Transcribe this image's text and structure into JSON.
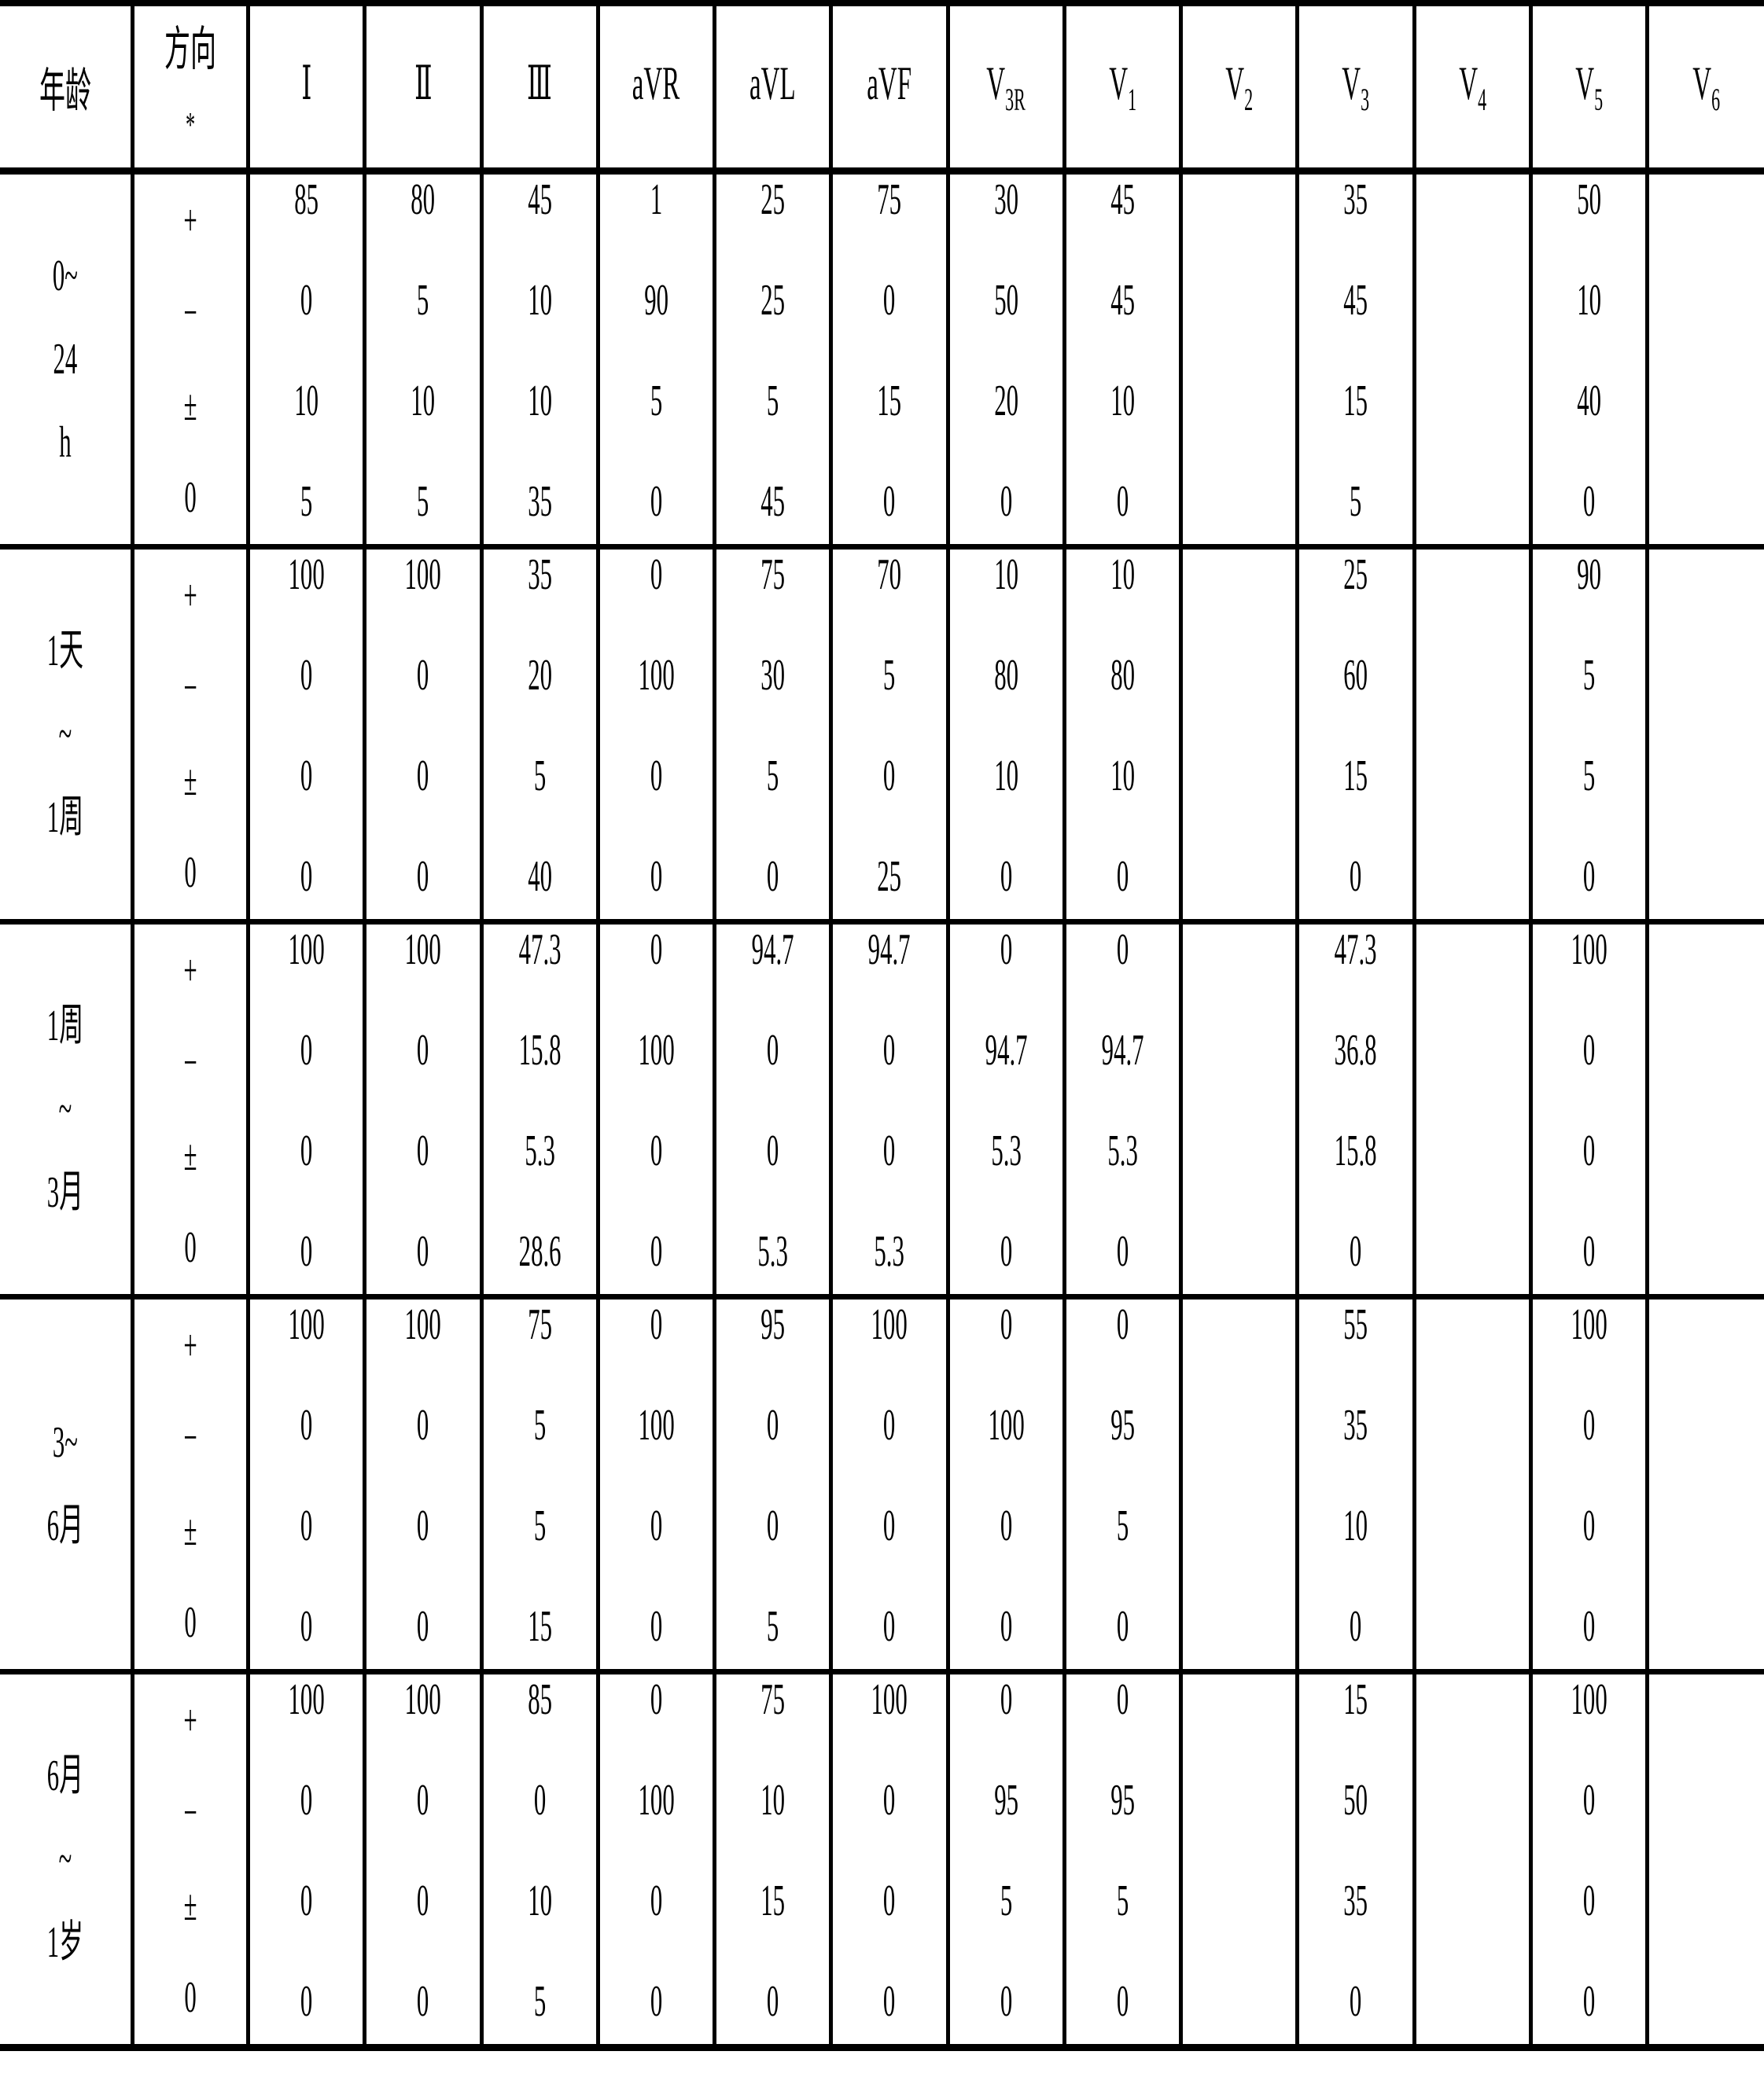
{
  "header": {
    "age": "年龄",
    "direction": [
      "方向",
      "*"
    ],
    "leads": [
      {
        "main": "Ⅰ",
        "sub": ""
      },
      {
        "main": "Ⅱ",
        "sub": ""
      },
      {
        "main": "Ⅲ",
        "sub": ""
      },
      {
        "main": "aVR",
        "sub": ""
      },
      {
        "main": "aVL",
        "sub": ""
      },
      {
        "main": "aVF",
        "sub": ""
      },
      {
        "main": "V",
        "sub": "3R"
      },
      {
        "main": "V",
        "sub": "1"
      },
      {
        "main": "V",
        "sub": "2"
      },
      {
        "main": "V",
        "sub": "3"
      },
      {
        "main": "V",
        "sub": "4"
      },
      {
        "main": "V",
        "sub": "5"
      },
      {
        "main": "V",
        "sub": "6"
      }
    ]
  },
  "directions": [
    "+",
    "−",
    "±",
    "0"
  ],
  "groups": [
    {
      "age": [
        "0~",
        "24",
        "h"
      ],
      "values": [
        [
          "85",
          "0",
          "10",
          "5"
        ],
        [
          "80",
          "5",
          "10",
          "5"
        ],
        [
          "45",
          "10",
          "10",
          "35"
        ],
        [
          "1",
          "90",
          "5",
          "0"
        ],
        [
          "25",
          "25",
          "5",
          "45"
        ],
        [
          "75",
          "0",
          "15",
          "0"
        ],
        [
          "30",
          "50",
          "20",
          "0"
        ],
        [
          "45",
          "45",
          "10",
          "0"
        ],
        [
          "",
          "",
          "",
          ""
        ],
        [
          "35",
          "45",
          "15",
          "5"
        ],
        [
          "",
          "",
          "",
          ""
        ],
        [
          "50",
          "10",
          "40",
          "0"
        ],
        [
          "",
          "",
          "",
          ""
        ]
      ]
    },
    {
      "age": [
        "1天",
        "~",
        "1周"
      ],
      "values": [
        [
          "100",
          "0",
          "0",
          "0"
        ],
        [
          "100",
          "0",
          "0",
          "0"
        ],
        [
          "35",
          "20",
          "5",
          "40"
        ],
        [
          "0",
          "100",
          "0",
          "0"
        ],
        [
          "75",
          "30",
          "5",
          "0"
        ],
        [
          "70",
          "5",
          "0",
          "25"
        ],
        [
          "10",
          "80",
          "10",
          "0"
        ],
        [
          "10",
          "80",
          "10",
          "0"
        ],
        [
          "",
          "",
          "",
          ""
        ],
        [
          "25",
          "60",
          "15",
          "0"
        ],
        [
          "",
          "",
          "",
          ""
        ],
        [
          "90",
          "5",
          "5",
          "0"
        ],
        [
          "",
          "",
          "",
          ""
        ]
      ]
    },
    {
      "age": [
        "1周",
        "~",
        "3月"
      ],
      "values": [
        [
          "100",
          "0",
          "0",
          "0"
        ],
        [
          "100",
          "0",
          "0",
          "0"
        ],
        [
          "47.3",
          "15.8",
          "5.3",
          "28.6"
        ],
        [
          "0",
          "100",
          "0",
          "0"
        ],
        [
          "94.7",
          "0",
          "0",
          "5.3"
        ],
        [
          "94.7",
          "0",
          "0",
          "5.3"
        ],
        [
          "0",
          "94.7",
          "5.3",
          "0"
        ],
        [
          "0",
          "94.7",
          "5.3",
          "0"
        ],
        [
          "",
          "",
          "",
          ""
        ],
        [
          "47.3",
          "36.8",
          "15.8",
          "0"
        ],
        [
          "",
          "",
          "",
          ""
        ],
        [
          "100",
          "0",
          "0",
          "0"
        ],
        [
          "",
          "",
          "",
          ""
        ]
      ]
    },
    {
      "age": [
        "3~",
        "6月"
      ],
      "values": [
        [
          "100",
          "0",
          "0",
          "0"
        ],
        [
          "100",
          "0",
          "0",
          "0"
        ],
        [
          "75",
          "5",
          "5",
          "15"
        ],
        [
          "0",
          "100",
          "0",
          "0"
        ],
        [
          "95",
          "0",
          "0",
          "5"
        ],
        [
          "100",
          "0",
          "0",
          "0"
        ],
        [
          "0",
          "100",
          "0",
          "0"
        ],
        [
          "0",
          "95",
          "5",
          "0"
        ],
        [
          "",
          "",
          "",
          ""
        ],
        [
          "55",
          "35",
          "10",
          "0"
        ],
        [
          "",
          "",
          "",
          ""
        ],
        [
          "100",
          "0",
          "0",
          "0"
        ],
        [
          "",
          "",
          "",
          ""
        ]
      ]
    },
    {
      "age": [
        "6月",
        "~",
        "1岁"
      ],
      "values": [
        [
          "100",
          "0",
          "0",
          "0"
        ],
        [
          "100",
          "0",
          "0",
          "0"
        ],
        [
          "85",
          "0",
          "10",
          "5"
        ],
        [
          "0",
          "100",
          "0",
          "0"
        ],
        [
          "75",
          "10",
          "15",
          "0"
        ],
        [
          "100",
          "0",
          "0",
          "0"
        ],
        [
          "0",
          "95",
          "5",
          "0"
        ],
        [
          "0",
          "95",
          "5",
          "0"
        ],
        [
          "",
          "",
          "",
          ""
        ],
        [
          "15",
          "50",
          "35",
          "0"
        ],
        [
          "",
          "",
          "",
          ""
        ],
        [
          "100",
          "0",
          "0",
          "0"
        ],
        [
          "",
          "",
          "",
          ""
        ]
      ]
    }
  ]
}
